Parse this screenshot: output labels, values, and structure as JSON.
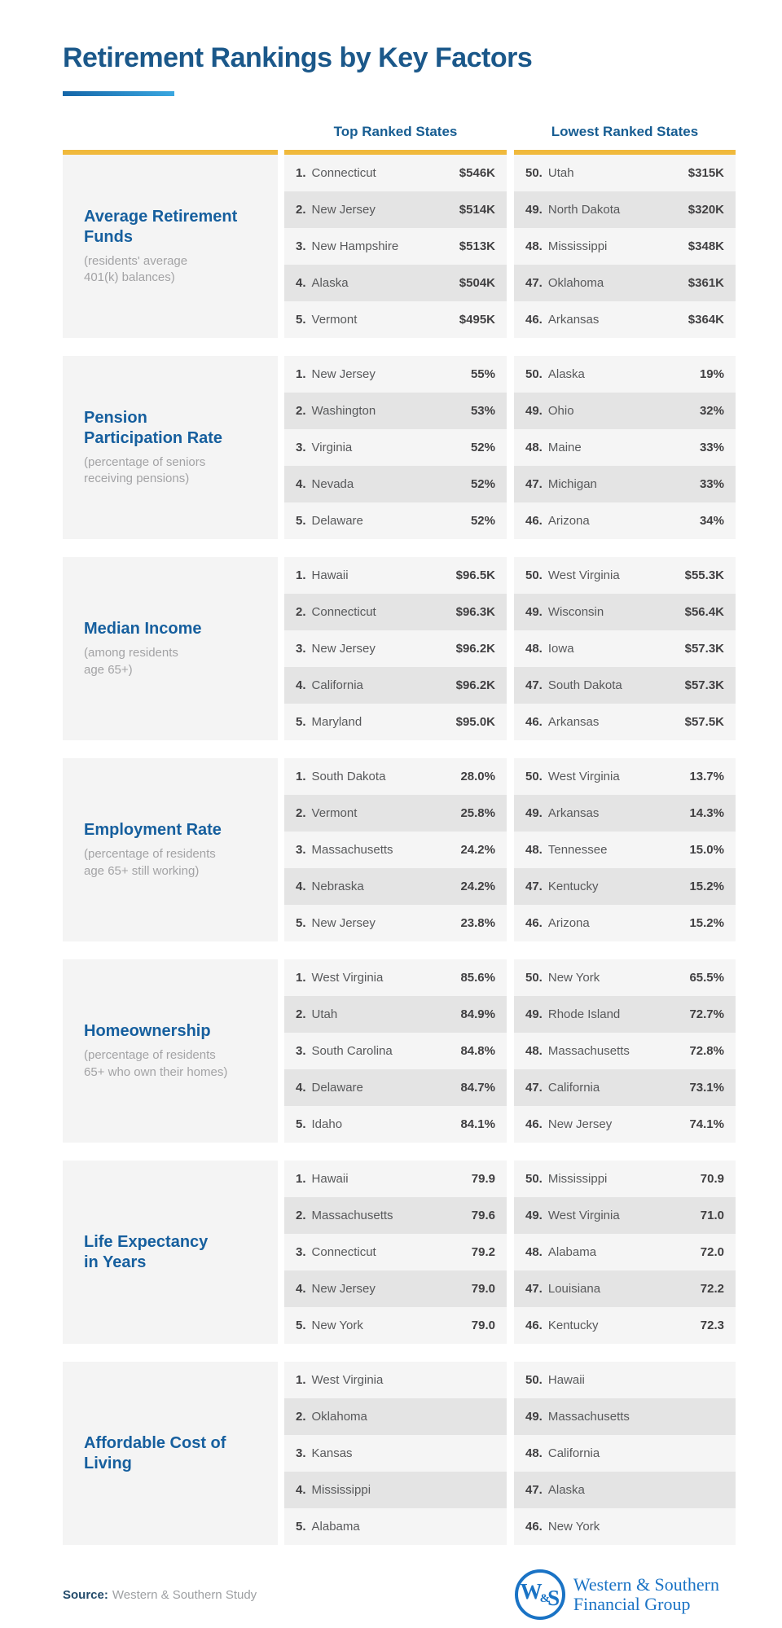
{
  "colors": {
    "title_blue": "#1b588a",
    "section_title_blue": "#165f9e",
    "column_header_blue": "#175d92",
    "accent_gold": "#f0b93c",
    "underline_gradient_start": "#1566a8",
    "underline_gradient_end": "#3aa7e0",
    "row_light": "#f5f5f5",
    "row_dark": "#e4e4e4",
    "panel_gray": "#f4f4f4",
    "text_dark": "#414042",
    "text_state": "#58595b",
    "subtitle_gray": "#a3a3a5",
    "logo_blue": "#1a73c5"
  },
  "chart_data": {
    "type": "table",
    "title": "Retirement Rankings by Key Factors",
    "column_headers": [
      "Top Ranked States",
      "Lowest Ranked States"
    ],
    "sections": [
      {
        "title": "Average Retirement Funds",
        "title_lines": [
          "Average Retirement",
          "Funds"
        ],
        "subtitle": "(residents' average 401(k) balances)",
        "subtitle_lines": [
          "(residents' average",
          "401(k) balances)"
        ],
        "top": [
          {
            "rank": "1.",
            "state": "Connecticut",
            "value": "$546K"
          },
          {
            "rank": "2.",
            "state": "New Jersey",
            "value": "$514K"
          },
          {
            "rank": "3.",
            "state": "New Hampshire",
            "value": "$513K"
          },
          {
            "rank": "4.",
            "state": "Alaska",
            "value": "$504K"
          },
          {
            "rank": "5.",
            "state": "Vermont",
            "value": "$495K"
          }
        ],
        "lowest": [
          {
            "rank": "50.",
            "state": "Utah",
            "value": "$315K"
          },
          {
            "rank": "49.",
            "state": "North Dakota",
            "value": "$320K"
          },
          {
            "rank": "48.",
            "state": "Mississippi",
            "value": "$348K"
          },
          {
            "rank": "47.",
            "state": "Oklahoma",
            "value": "$361K"
          },
          {
            "rank": "46.",
            "state": "Arkansas",
            "value": "$364K"
          }
        ]
      },
      {
        "title": "Pension Participation Rate",
        "title_lines": [
          "Pension",
          "Participation Rate"
        ],
        "subtitle": "(percentage of seniors receiving pensions)",
        "subtitle_lines": [
          "(percentage of seniors",
          "receiving pensions)"
        ],
        "top": [
          {
            "rank": "1.",
            "state": "New Jersey",
            "value": "55%"
          },
          {
            "rank": "2.",
            "state": "Washington",
            "value": "53%"
          },
          {
            "rank": "3.",
            "state": "Virginia",
            "value": "52%"
          },
          {
            "rank": "4.",
            "state": "Nevada",
            "value": "52%"
          },
          {
            "rank": "5.",
            "state": "Delaware",
            "value": "52%"
          }
        ],
        "lowest": [
          {
            "rank": "50.",
            "state": "Alaska",
            "value": "19%"
          },
          {
            "rank": "49.",
            "state": "Ohio",
            "value": "32%"
          },
          {
            "rank": "48.",
            "state": "Maine",
            "value": "33%"
          },
          {
            "rank": "47.",
            "state": "Michigan",
            "value": "33%"
          },
          {
            "rank": "46.",
            "state": "Arizona",
            "value": "34%"
          }
        ]
      },
      {
        "title": "Median Income",
        "title_lines": [
          "Median Income"
        ],
        "subtitle": "(among residents age 65+)",
        "subtitle_lines": [
          "(among residents",
          "age 65+)"
        ],
        "top": [
          {
            "rank": "1.",
            "state": "Hawaii",
            "value": "$96.5K"
          },
          {
            "rank": "2.",
            "state": "Connecticut",
            "value": "$96.3K"
          },
          {
            "rank": "3.",
            "state": "New Jersey",
            "value": "$96.2K"
          },
          {
            "rank": "4.",
            "state": "California",
            "value": "$96.2K"
          },
          {
            "rank": "5.",
            "state": "Maryland",
            "value": "$95.0K"
          }
        ],
        "lowest": [
          {
            "rank": "50.",
            "state": "West Virginia",
            "value": "$55.3K"
          },
          {
            "rank": "49.",
            "state": "Wisconsin",
            "value": "$56.4K"
          },
          {
            "rank": "48.",
            "state": "Iowa",
            "value": "$57.3K"
          },
          {
            "rank": "47.",
            "state": "South Dakota",
            "value": "$57.3K"
          },
          {
            "rank": "46.",
            "state": "Arkansas",
            "value": "$57.5K"
          }
        ]
      },
      {
        "title": "Employment Rate",
        "title_lines": [
          "Employment Rate"
        ],
        "subtitle": "(percentage of residents age 65+ still working)",
        "subtitle_lines": [
          "(percentage of residents",
          "age 65+ still working)"
        ],
        "top": [
          {
            "rank": "1.",
            "state": "South Dakota",
            "value": "28.0%"
          },
          {
            "rank": "2.",
            "state": "Vermont",
            "value": "25.8%"
          },
          {
            "rank": "3.",
            "state": "Massachusetts",
            "value": "24.2%"
          },
          {
            "rank": "4.",
            "state": "Nebraska",
            "value": "24.2%"
          },
          {
            "rank": "5.",
            "state": "New Jersey",
            "value": "23.8%"
          }
        ],
        "lowest": [
          {
            "rank": "50.",
            "state": "West Virginia",
            "value": "13.7%"
          },
          {
            "rank": "49.",
            "state": "Arkansas",
            "value": "14.3%"
          },
          {
            "rank": "48.",
            "state": "Tennessee",
            "value": "15.0%"
          },
          {
            "rank": "47.",
            "state": "Kentucky",
            "value": "15.2%"
          },
          {
            "rank": "46.",
            "state": "Arizona",
            "value": "15.2%"
          }
        ]
      },
      {
        "title": "Homeownership",
        "title_lines": [
          "Homeownership"
        ],
        "subtitle": "(percentage of residents 65+ who own their homes)",
        "subtitle_lines": [
          "(percentage of residents",
          "65+ who own their homes)"
        ],
        "top": [
          {
            "rank": "1.",
            "state": "West Virginia",
            "value": "85.6%"
          },
          {
            "rank": "2.",
            "state": "Utah",
            "value": "84.9%"
          },
          {
            "rank": "3.",
            "state": "South Carolina",
            "value": "84.8%"
          },
          {
            "rank": "4.",
            "state": "Delaware",
            "value": "84.7%"
          },
          {
            "rank": "5.",
            "state": "Idaho",
            "value": "84.1%"
          }
        ],
        "lowest": [
          {
            "rank": "50.",
            "state": "New York",
            "value": "65.5%"
          },
          {
            "rank": "49.",
            "state": "Rhode Island",
            "value": "72.7%"
          },
          {
            "rank": "48.",
            "state": "Massachusetts",
            "value": "72.8%"
          },
          {
            "rank": "47.",
            "state": "California",
            "value": "73.1%"
          },
          {
            "rank": "46.",
            "state": "New Jersey",
            "value": "74.1%"
          }
        ]
      },
      {
        "title": "Life Expectancy in Years",
        "title_lines": [
          "Life Expectancy",
          "in Years"
        ],
        "subtitle": "",
        "subtitle_lines": [],
        "top": [
          {
            "rank": "1.",
            "state": "Hawaii",
            "value": "79.9"
          },
          {
            "rank": "2.",
            "state": "Massachusetts",
            "value": "79.6"
          },
          {
            "rank": "3.",
            "state": "Connecticut",
            "value": "79.2"
          },
          {
            "rank": "4.",
            "state": "New Jersey",
            "value": "79.0"
          },
          {
            "rank": "5.",
            "state": "New York",
            "value": "79.0"
          }
        ],
        "lowest": [
          {
            "rank": "50.",
            "state": "Mississippi",
            "value": "70.9"
          },
          {
            "rank": "49.",
            "state": "West Virginia",
            "value": "71.0"
          },
          {
            "rank": "48.",
            "state": "Alabama",
            "value": "72.0"
          },
          {
            "rank": "47.",
            "state": "Louisiana",
            "value": "72.2"
          },
          {
            "rank": "46.",
            "state": "Kentucky",
            "value": "72.3"
          }
        ]
      },
      {
        "title": "Affordable Cost of Living",
        "title_lines": [
          "Affordable Cost of",
          "Living"
        ],
        "subtitle": "",
        "subtitle_lines": [],
        "top": [
          {
            "rank": "1.",
            "state": "West Virginia",
            "value": ""
          },
          {
            "rank": "2.",
            "state": "Oklahoma",
            "value": ""
          },
          {
            "rank": "3.",
            "state": "Kansas",
            "value": ""
          },
          {
            "rank": "4.",
            "state": "Mississippi",
            "value": ""
          },
          {
            "rank": "5.",
            "state": "Alabama",
            "value": ""
          }
        ],
        "lowest": [
          {
            "rank": "50.",
            "state": "Hawaii",
            "value": ""
          },
          {
            "rank": "49.",
            "state": "Massachusetts",
            "value": ""
          },
          {
            "rank": "48.",
            "state": "California",
            "value": ""
          },
          {
            "rank": "47.",
            "state": "Alaska",
            "value": ""
          },
          {
            "rank": "46.",
            "state": "New York",
            "value": ""
          }
        ]
      }
    ]
  },
  "footer": {
    "source_label": "Source:",
    "source_text": "Western & Southern Study",
    "logo": {
      "monogram": "W&S",
      "line1": "Western & Southern",
      "line2": "Financial Group"
    }
  }
}
